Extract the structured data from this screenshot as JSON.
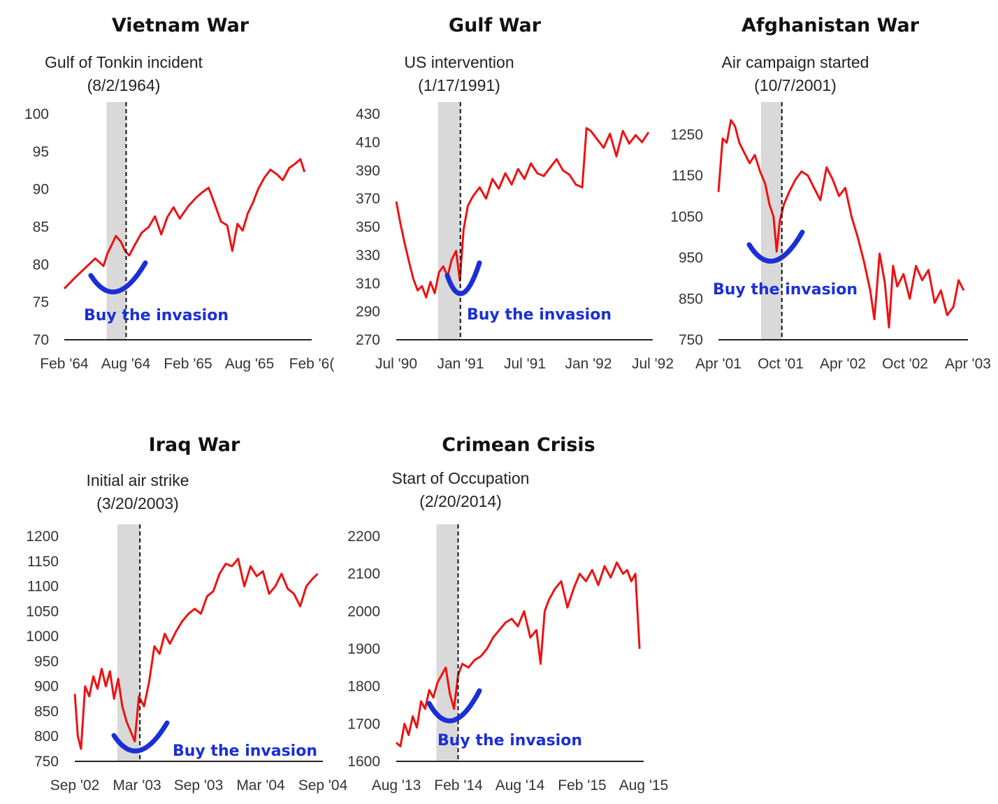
{
  "colors": {
    "line": "#ee1111",
    "smile": "#1a2fd6",
    "shade": "#d9d9d9",
    "axis": "#222222"
  },
  "chart_data": [
    {
      "type": "line",
      "title": "Vietnam War",
      "annotation": "Gulf of Tonkin incident",
      "event_date": "(8/2/1964)",
      "callout": "Buy the invasion",
      "ylim": [
        70,
        100
      ],
      "yticks": [
        "100",
        "95",
        "90",
        "85",
        "80",
        "75",
        "70"
      ],
      "xticks": [
        "Feb '64",
        "Aug '64",
        "Feb '65",
        "Aug '65",
        "Feb '6("
      ],
      "xrange": [
        0,
        24
      ],
      "event_x": 6.0,
      "shade": [
        4.1,
        6.0
      ],
      "x": [
        0,
        1,
        2,
        3,
        3.8,
        4.2,
        4.6,
        5,
        5.5,
        5.9,
        6.3,
        6.8,
        7.5,
        8.2,
        8.8,
        9.4,
        10,
        10.6,
        11.2,
        12,
        12.8,
        13.4,
        14,
        14.6,
        15.2,
        15.8,
        16.3,
        16.8,
        17.3,
        17.8,
        18.3,
        18.8,
        19.4,
        20,
        20.6,
        21.2,
        21.8,
        22.4,
        22.9,
        23.3
      ],
      "values": [
        76.8,
        78.2,
        79.5,
        80.8,
        79.8,
        81.5,
        82.6,
        83.8,
        83.0,
        81.8,
        81.2,
        82.5,
        84.2,
        85.0,
        86.4,
        84.0,
        86.3,
        87.6,
        86.1,
        87.7,
        88.9,
        89.6,
        90.2,
        88.0,
        85.7,
        85.2,
        81.8,
        85.4,
        84.5,
        86.8,
        88.2,
        90.0,
        91.5,
        92.6,
        92.0,
        91.2,
        92.8,
        93.4,
        94.0,
        92.3
      ]
    },
    {
      "type": "line",
      "title": "Gulf War",
      "annotation": "US intervention",
      "event_date": "(1/17/1991)",
      "callout": "Buy the invasion",
      "ylim": [
        270,
        430
      ],
      "yticks": [
        "430",
        "410",
        "390",
        "370",
        "350",
        "330",
        "310",
        "290",
        "270"
      ],
      "xticks": [
        "Jul '90",
        "Jan '91",
        "Jul '91",
        "Jan '92",
        "Jul '92"
      ],
      "xrange": [
        0,
        24
      ],
      "event_x": 6.0,
      "shade": [
        3.9,
        6.0
      ],
      "x": [
        0,
        0.4,
        0.8,
        1.2,
        1.6,
        2,
        2.4,
        2.8,
        3.2,
        3.6,
        4,
        4.4,
        4.8,
        5.2,
        5.6,
        5.95,
        6.3,
        6.7,
        7.2,
        7.8,
        8.4,
        9,
        9.6,
        10.2,
        10.8,
        11.4,
        12,
        12.6,
        13.2,
        13.8,
        14.4,
        15,
        15.6,
        16.2,
        16.8,
        17.4,
        17.8,
        18.2,
        18.8,
        19.4,
        20,
        20.6,
        21.2,
        21.8,
        22.4,
        23,
        23.6
      ],
      "values": [
        368,
        352,
        338,
        325,
        313,
        305,
        308,
        300,
        311,
        303,
        318,
        322,
        315,
        327,
        333,
        312,
        348,
        365,
        372,
        378,
        370,
        384,
        377,
        388,
        380,
        391,
        384,
        395,
        388,
        386,
        392,
        398,
        390,
        387,
        380,
        378,
        420,
        418,
        412,
        406,
        416,
        400,
        418,
        409,
        415,
        410,
        417
      ]
    },
    {
      "type": "line",
      "title": "Afghanistan War",
      "annotation": "Air campaign started",
      "event_date": "(10/7/2001)",
      "callout": "Buy the invasion",
      "ylim": [
        750,
        1300
      ],
      "yticks": [
        "1250",
        "1150",
        "1050",
        "950",
        "850",
        "750"
      ],
      "xticks": [
        "Apr '01",
        "Oct '01",
        "Apr '02",
        "Oct '02",
        "Apr '03"
      ],
      "xrange": [
        0,
        24
      ],
      "event_x": 6.1,
      "shade": [
        4.1,
        6.1
      ],
      "x": [
        0,
        0.4,
        0.8,
        1.2,
        1.6,
        2,
        2.5,
        3,
        3.5,
        4,
        4.5,
        4.9,
        5.3,
        5.6,
        5.9,
        6.3,
        6.8,
        7.4,
        8,
        8.6,
        9.2,
        9.8,
        10.4,
        11,
        11.6,
        12.2,
        12.8,
        13.4,
        14,
        14.6,
        15,
        15.5,
        16,
        16.4,
        16.8,
        17.2,
        17.8,
        18.4,
        19,
        19.6,
        20.2,
        20.8,
        21.4,
        22,
        22.6,
        23.1,
        23.6
      ],
      "values": [
        1110,
        1240,
        1230,
        1285,
        1270,
        1230,
        1205,
        1180,
        1200,
        1160,
        1130,
        1080,
        1050,
        965,
        1040,
        1080,
        1110,
        1140,
        1160,
        1150,
        1120,
        1090,
        1170,
        1140,
        1100,
        1120,
        1050,
        1000,
        940,
        870,
        800,
        960,
        890,
        780,
        930,
        880,
        910,
        850,
        930,
        895,
        920,
        840,
        870,
        810,
        830,
        895,
        870
      ]
    },
    {
      "type": "line",
      "title": "Iraq War",
      "annotation": "Initial air strike",
      "event_date": "(3/20/2003)",
      "callout": "Buy the invasion",
      "ylim": [
        750,
        1200
      ],
      "yticks": [
        "1200",
        "1150",
        "1100",
        "1050",
        "1000",
        "950",
        "900",
        "850",
        "800",
        "750"
      ],
      "xticks": [
        "Sep '02",
        "Mar '03",
        "Sep '03",
        "Mar '04",
        "Sep '04"
      ],
      "xrange": [
        0,
        24
      ],
      "event_x": 6.3,
      "shade": [
        4.1,
        6.3
      ],
      "x": [
        0,
        0.3,
        0.6,
        1,
        1.4,
        1.8,
        2.2,
        2.6,
        3,
        3.4,
        3.8,
        4.2,
        4.6,
        5,
        5.4,
        5.8,
        6.2,
        6.7,
        7.2,
        7.7,
        8.2,
        8.7,
        9.2,
        9.8,
        10.4,
        11,
        11.6,
        12.2,
        12.8,
        13.4,
        14,
        14.6,
        15.2,
        15.8,
        16.4,
        17,
        17.6,
        18.2,
        18.8,
        19.4,
        20,
        20.6,
        21.2,
        21.8,
        22.4,
        23,
        23.5
      ],
      "values": [
        885,
        800,
        775,
        900,
        880,
        920,
        895,
        935,
        900,
        930,
        875,
        915,
        860,
        830,
        810,
        790,
        880,
        860,
        910,
        980,
        965,
        1005,
        985,
        1010,
        1030,
        1045,
        1055,
        1045,
        1080,
        1090,
        1125,
        1145,
        1140,
        1155,
        1100,
        1140,
        1120,
        1130,
        1085,
        1100,
        1125,
        1095,
        1085,
        1060,
        1100,
        1115,
        1125
      ]
    },
    {
      "type": "line",
      "title": "Crimean Crisis",
      "annotation": "Start of Occupation",
      "event_date": "(2/20/2014)",
      "callout": "Buy the invasion",
      "ylim": [
        1600,
        2200
      ],
      "yticks": [
        "2200",
        "2100",
        "2000",
        "1900",
        "1800",
        "1700",
        "1600"
      ],
      "xticks": [
        "Aug '13",
        "Feb '14",
        "Aug '14",
        "Feb '15",
        "Aug '15"
      ],
      "xrange": [
        0,
        24
      ],
      "event_x": 6.0,
      "shade": [
        3.9,
        6.0
      ],
      "x": [
        0,
        0.4,
        0.8,
        1.2,
        1.6,
        2,
        2.4,
        2.8,
        3.2,
        3.6,
        4,
        4.4,
        4.8,
        5.2,
        5.6,
        6,
        6.4,
        7,
        7.6,
        8.2,
        8.8,
        9.4,
        10,
        10.6,
        11.2,
        11.8,
        12.4,
        13,
        13.6,
        14,
        14.4,
        14.8,
        15.4,
        16,
        16.6,
        17.2,
        17.8,
        18.4,
        19,
        19.6,
        20.2,
        20.8,
        21.4,
        22,
        22.4,
        22.8,
        23.2,
        23.6
      ],
      "values": [
        1650,
        1640,
        1700,
        1670,
        1720,
        1690,
        1760,
        1740,
        1790,
        1770,
        1810,
        1830,
        1850,
        1780,
        1740,
        1830,
        1860,
        1850,
        1870,
        1880,
        1900,
        1930,
        1950,
        1970,
        1980,
        1960,
        2000,
        1930,
        1950,
        1860,
        2000,
        2030,
        2060,
        2080,
        2010,
        2060,
        2100,
        2080,
        2110,
        2070,
        2120,
        2090,
        2130,
        2100,
        2110,
        2080,
        2100,
        1900
      ]
    }
  ]
}
